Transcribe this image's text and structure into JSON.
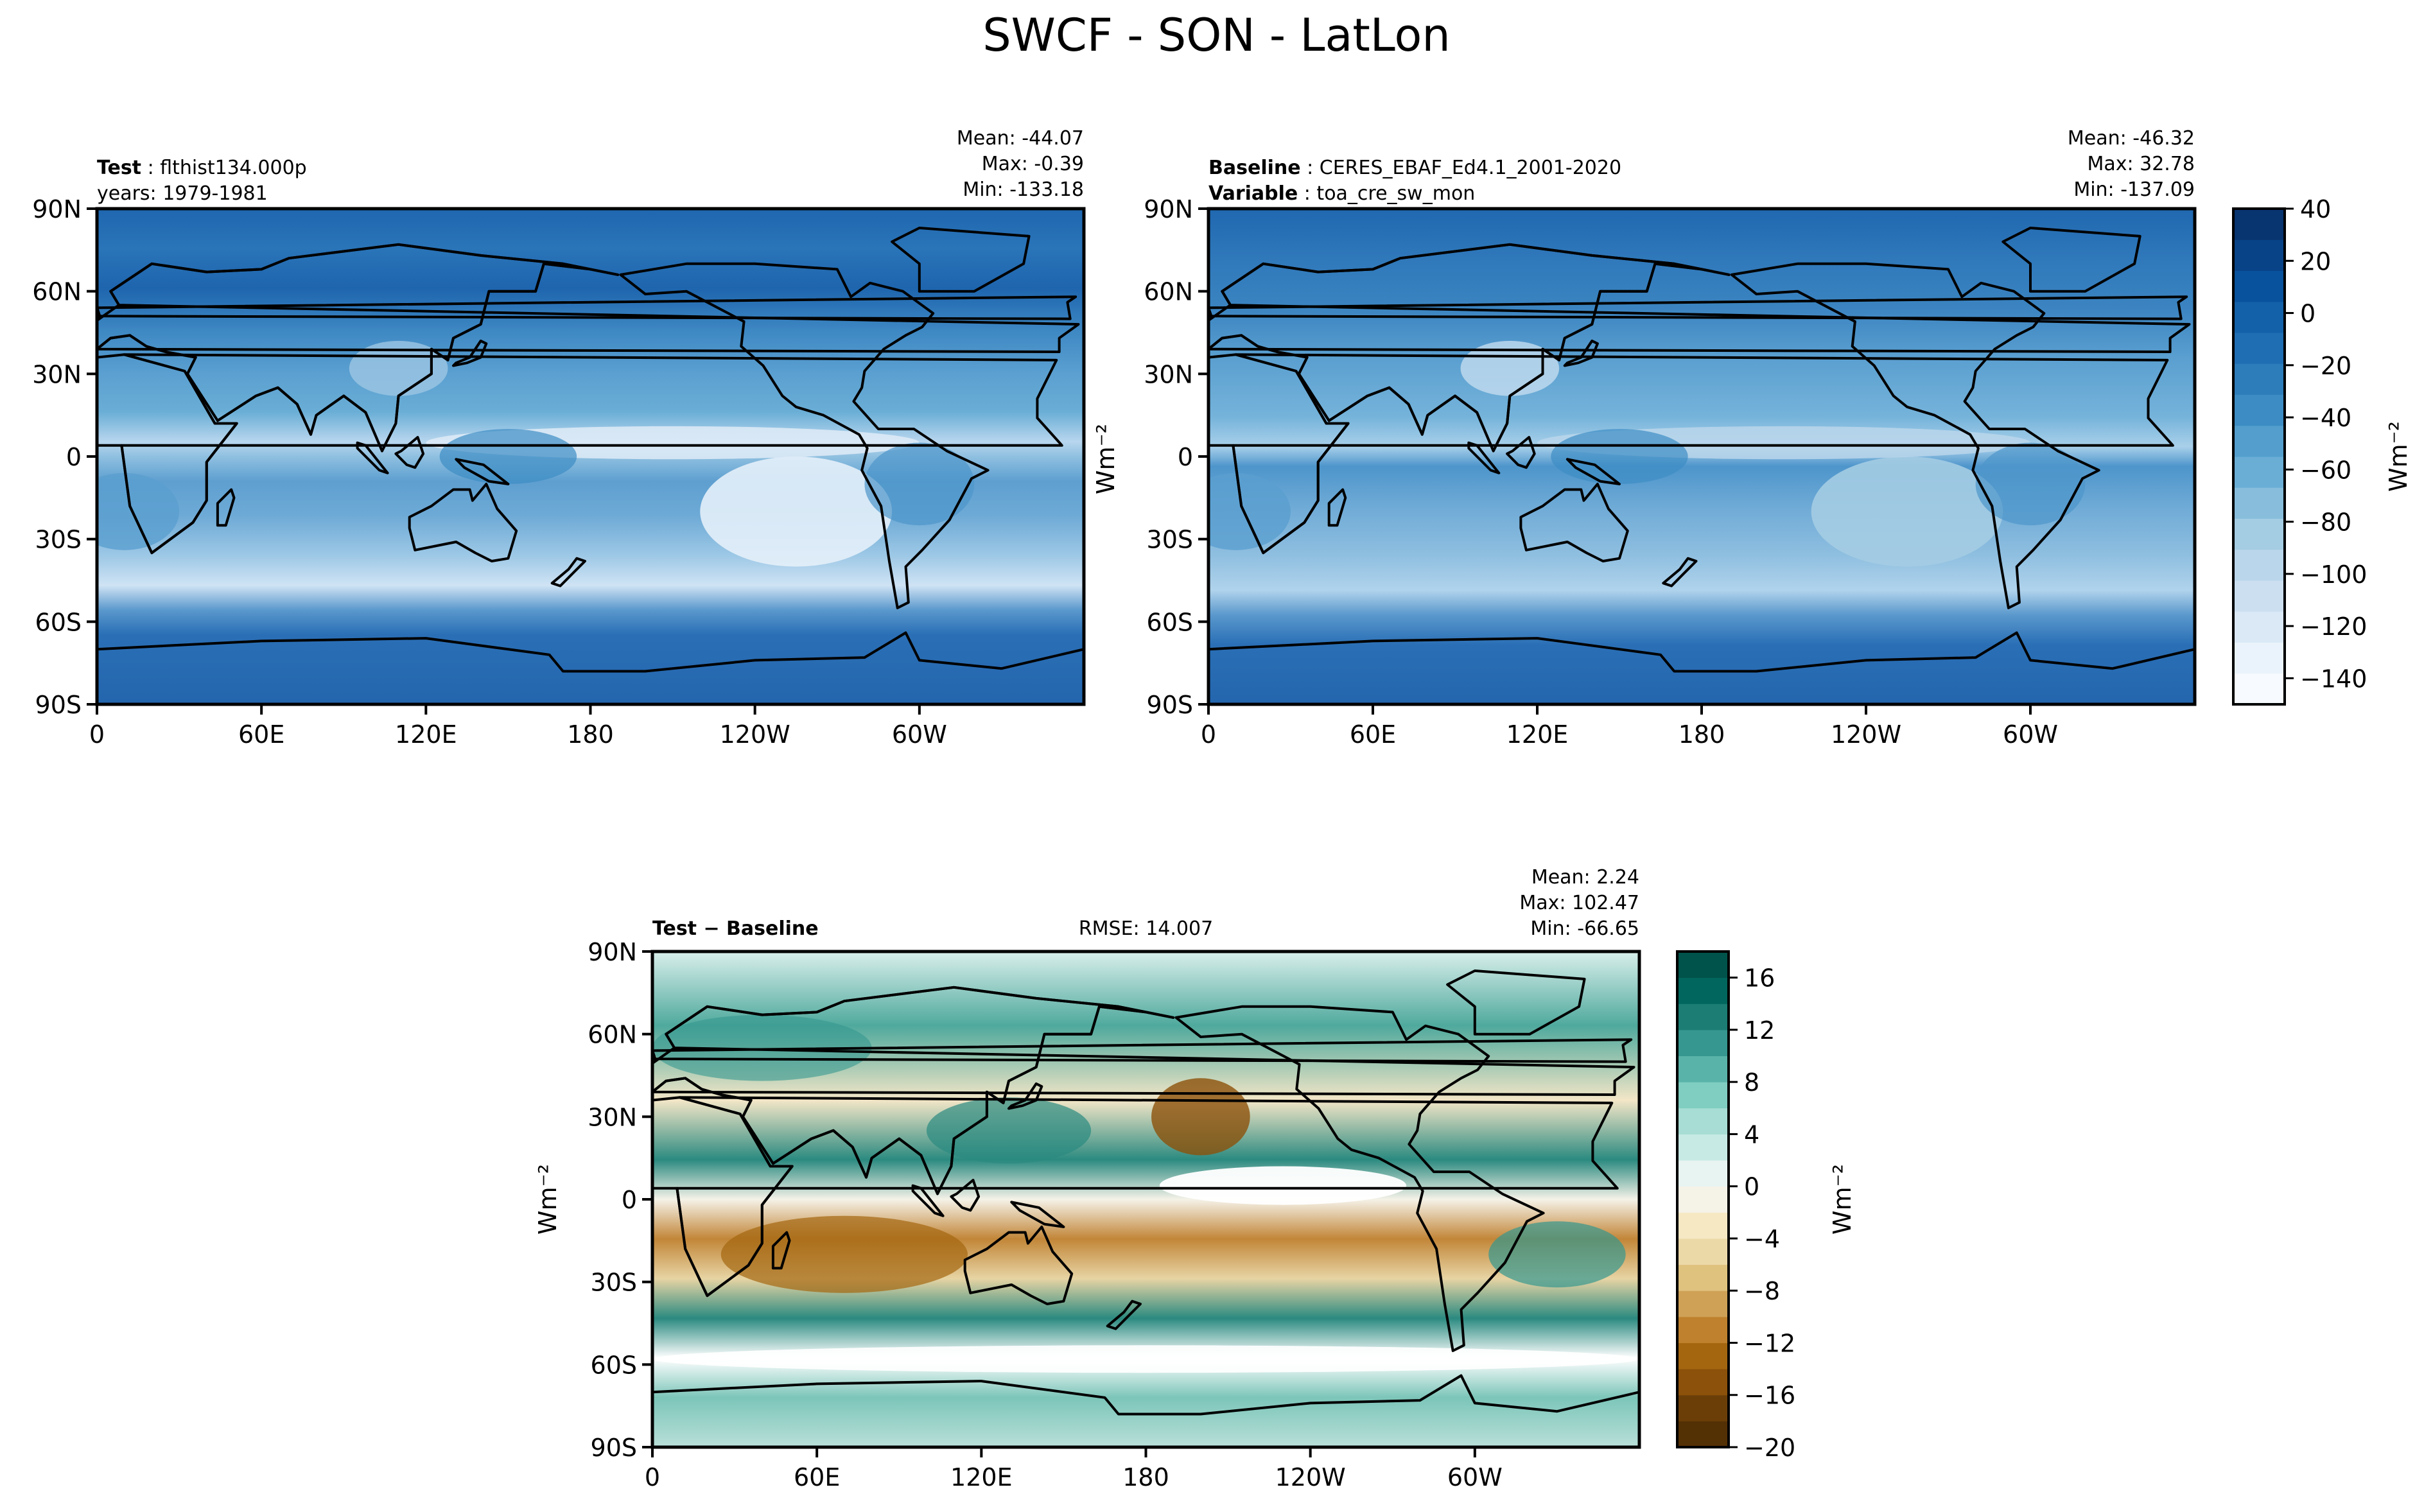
{
  "figure": {
    "title": "SWCF - SON - LatLon"
  },
  "chart_data": [
    {
      "type": "heatmap",
      "id": "test",
      "header": {
        "label_bold": "Test",
        "label_value": "flthist134.000p",
        "line2": "years: 1979-1981"
      },
      "stats": {
        "mean": "Mean: -44.07",
        "max": "Max: -0.39",
        "min": "Min: -133.18"
      },
      "xticks": [
        "0",
        "60E",
        "120E",
        "180",
        "120W",
        "60W"
      ],
      "yticks": [
        "90N",
        "60N",
        "30N",
        "0",
        "30S",
        "60S",
        "90S"
      ],
      "xlim": [
        0,
        360
      ],
      "ylim": [
        -90,
        90
      ],
      "colorscale": "blues"
    },
    {
      "type": "heatmap",
      "id": "baseline",
      "header": {
        "label_bold": "Baseline",
        "label_value": "CERES_EBAF_Ed4.1_2001-2020",
        "line2_bold": "Variable",
        "line2_value": "toa_cre_sw_mon"
      },
      "stats": {
        "mean": "Mean: -46.32",
        "max": "Max: 32.78",
        "min": "Min: -137.09"
      },
      "xticks": [
        "0",
        "60E",
        "120E",
        "180",
        "120W",
        "60W"
      ],
      "yticks": [
        "90N",
        "60N",
        "30N",
        "0",
        "30S",
        "60S",
        "90S"
      ],
      "xlim": [
        0,
        360
      ],
      "ylim": [
        -90,
        90
      ],
      "colorscale": "blues"
    },
    {
      "type": "heatmap",
      "id": "diff",
      "header": {
        "label": "Test − Baseline",
        "rmse": "RMSE: 14.007"
      },
      "stats": {
        "mean": "Mean:  2.24",
        "max": "Max: 102.47",
        "min": "Min: -66.65"
      },
      "xticks": [
        "0",
        "60E",
        "120E",
        "180",
        "120W",
        "60W"
      ],
      "yticks": [
        "90N",
        "60N",
        "30N",
        "0",
        "30S",
        "60S",
        "90S"
      ],
      "xlim": [
        0,
        360
      ],
      "ylim": [
        -90,
        90
      ],
      "ylabel": "Wm⁻²",
      "colorscale": "brown-teal"
    }
  ],
  "colorbars": {
    "top": {
      "label": "Wm⁻²",
      "ticks": [
        "40",
        "20",
        "0",
        "−20",
        "−40",
        "−60",
        "−80",
        "−100",
        "−120",
        "−140"
      ],
      "range": [
        -150,
        40
      ],
      "colors": [
        "#f7fbff",
        "#eaf3fb",
        "#dbe9f6",
        "#ccdff1",
        "#bad6eb",
        "#a4cce3",
        "#88bedc",
        "#6aaed6",
        "#539ecd",
        "#3d8dc4",
        "#2d7dbb",
        "#1f6eb3",
        "#1361a9",
        "#08519c",
        "#084387",
        "#083470"
      ]
    },
    "bottom": {
      "label": "Wm⁻²",
      "ticks": [
        "16",
        "12",
        "8",
        "4",
        "0",
        "−4",
        "−8",
        "−12",
        "−16",
        "−20"
      ],
      "range": [
        -20,
        18
      ],
      "colors": [
        "#543005",
        "#6b3e08",
        "#8c510a",
        "#a4660f",
        "#bf812d",
        "#cfa156",
        "#dfc27d",
        "#ecd9a8",
        "#f6e8c3",
        "#f5f2e8",
        "#e8f4f1",
        "#c7eae5",
        "#a7ddd4",
        "#80cdc1",
        "#5ab3a8",
        "#35978f",
        "#1b7d73",
        "#01665e",
        "#00534a"
      ]
    }
  }
}
